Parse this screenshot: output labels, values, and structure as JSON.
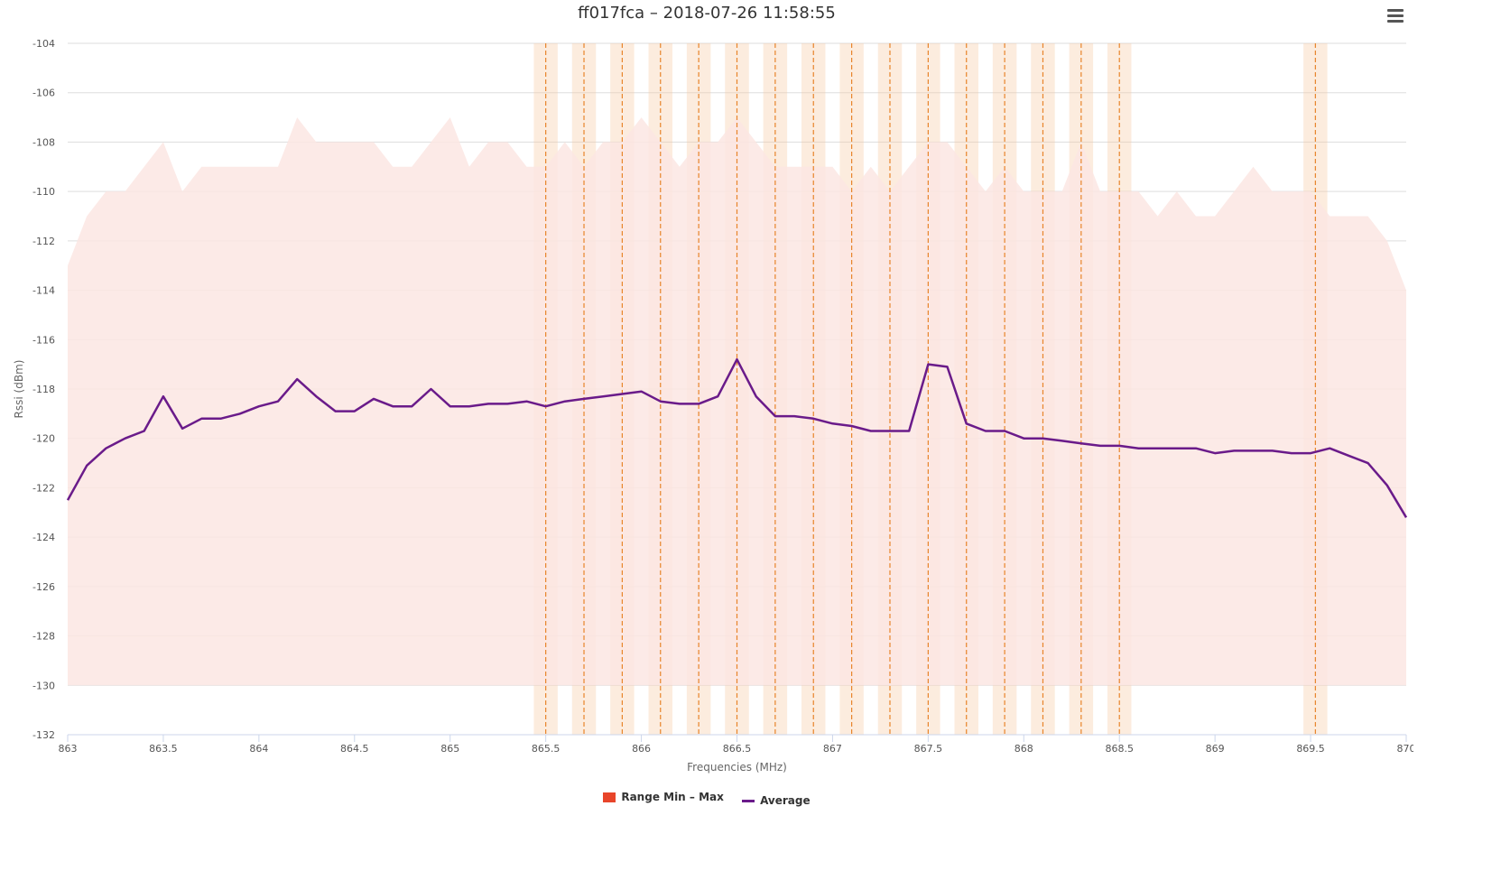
{
  "title": "ff017fca – 2018-07-26 11:58:55",
  "menu_icon": "hamburger-menu-icon",
  "colors": {
    "range_fill": "#fbe6e3",
    "range_legend": "#e8452a",
    "average": "#6a1b8a",
    "band": "#f5c9a0",
    "band_line": "#e8842a",
    "grid": "#dddddd"
  },
  "chart_data": {
    "type": "area",
    "title": "ff017fca – 2018-07-26 11:58:55",
    "xlabel": "Frequencies (MHz)",
    "ylabel": "Rssi (dBm)",
    "xlim": [
      863,
      870
    ],
    "ylim": [
      -132,
      -104
    ],
    "grid": true,
    "legend_position": "bottom-center",
    "x_ticks": [
      "863",
      "863.5",
      "864",
      "864.5",
      "865",
      "865.5",
      "866",
      "866.5",
      "867",
      "867.5",
      "868",
      "868.5",
      "869",
      "869.5",
      "870"
    ],
    "y_ticks": [
      "-104",
      "-106",
      "-108",
      "-110",
      "-112",
      "-114",
      "-116",
      "-118",
      "-120",
      "-122",
      "-124",
      "-126",
      "-128",
      "-130",
      "-132"
    ],
    "x": [
      863.0,
      863.1,
      863.2,
      863.3,
      863.4,
      863.5,
      863.6,
      863.7,
      863.8,
      863.9,
      864.0,
      864.1,
      864.2,
      864.3,
      864.4,
      864.5,
      864.6,
      864.7,
      864.8,
      864.9,
      865.0,
      865.1,
      865.2,
      865.3,
      865.4,
      865.5,
      865.6,
      865.7,
      865.8,
      865.9,
      866.0,
      866.1,
      866.2,
      866.3,
      866.4,
      866.5,
      866.6,
      866.7,
      866.8,
      866.9,
      867.0,
      867.1,
      867.2,
      867.3,
      867.4,
      867.5,
      867.6,
      867.7,
      867.8,
      867.9,
      868.0,
      868.1,
      868.2,
      868.3,
      868.4,
      868.5,
      868.6,
      868.7,
      868.8,
      868.9,
      869.0,
      869.1,
      869.2,
      869.3,
      869.4,
      869.5,
      869.6,
      869.7,
      869.8,
      869.9,
      870.0
    ],
    "series": [
      {
        "name": "Range Min - Max",
        "type": "arearange",
        "low": [
          -130,
          -130,
          -130,
          -130,
          -130,
          -130,
          -130,
          -130,
          -130,
          -130,
          -130,
          -130,
          -130,
          -130,
          -130,
          -130,
          -130,
          -130,
          -130,
          -130,
          -130,
          -130,
          -130,
          -130,
          -130,
          -130,
          -130,
          -130,
          -130,
          -130,
          -130,
          -130,
          -130,
          -130,
          -130,
          -130,
          -130,
          -130,
          -130,
          -130,
          -130,
          -130,
          -130,
          -130,
          -130,
          -130,
          -130,
          -130,
          -130,
          -130,
          -130,
          -130,
          -130,
          -130,
          -130,
          -130,
          -130,
          -130,
          -130,
          -130,
          -130,
          -130,
          -130,
          -130,
          -130,
          -130,
          -130,
          -130,
          -130,
          -130,
          -130
        ],
        "high": [
          -113,
          -111,
          -110,
          -110,
          -109,
          -108,
          -110,
          -109,
          -109,
          -109,
          -109,
          -109,
          -107,
          -108,
          -108,
          -108,
          -108,
          -109,
          -109,
          -108,
          -107,
          -109,
          -108,
          -108,
          -109,
          -109,
          -108,
          -109,
          -108,
          -108,
          -107,
          -108,
          -109,
          -108,
          -108,
          -107,
          -108,
          -109,
          -109,
          -109,
          -109,
          -110,
          -109,
          -110,
          -109,
          -108,
          -108,
          -109,
          -110,
          -109,
          -110,
          -110,
          -110,
          -108,
          -110,
          -110,
          -110,
          -111,
          -110,
          -111,
          -111,
          -110,
          -109,
          -110,
          -110,
          -110,
          -111,
          -111,
          -111,
          -112,
          -114
        ]
      },
      {
        "name": "Average",
        "type": "line",
        "values": [
          -122.5,
          -121.1,
          -120.4,
          -120.0,
          -119.7,
          -118.3,
          -119.6,
          -119.2,
          -119.2,
          -119.0,
          -118.7,
          -118.5,
          -117.6,
          -118.3,
          -118.9,
          -118.9,
          -118.4,
          -118.7,
          -118.7,
          -118.0,
          -118.7,
          -118.7,
          -118.6,
          -118.6,
          -118.5,
          -118.7,
          -118.5,
          -118.4,
          -118.3,
          -118.2,
          -118.1,
          -118.5,
          -118.6,
          -118.6,
          -118.3,
          -116.8,
          -118.3,
          -119.1,
          -119.1,
          -119.2,
          -119.4,
          -119.5,
          -119.7,
          -119.7,
          -119.7,
          -117.0,
          -117.1,
          -119.4,
          -119.7,
          -119.7,
          -120.0,
          -120.0,
          -120.1,
          -120.2,
          -120.3,
          -120.3,
          -120.4,
          -120.4,
          -120.4,
          -120.4,
          -120.6,
          -120.5,
          -120.5,
          -120.5,
          -120.6,
          -120.6,
          -120.4,
          -120.7,
          -121.0,
          -121.9,
          -123.2
        ]
      }
    ],
    "channel_bands": [
      865.5,
      865.7,
      865.9,
      866.1,
      866.3,
      866.5,
      866.7,
      866.9,
      867.1,
      867.3,
      867.5,
      867.7,
      867.9,
      868.1,
      868.3,
      868.5,
      869.525
    ],
    "channel_band_width": 0.125
  },
  "legend": {
    "range_label": "Range Min – Max",
    "average_label": "Average"
  }
}
